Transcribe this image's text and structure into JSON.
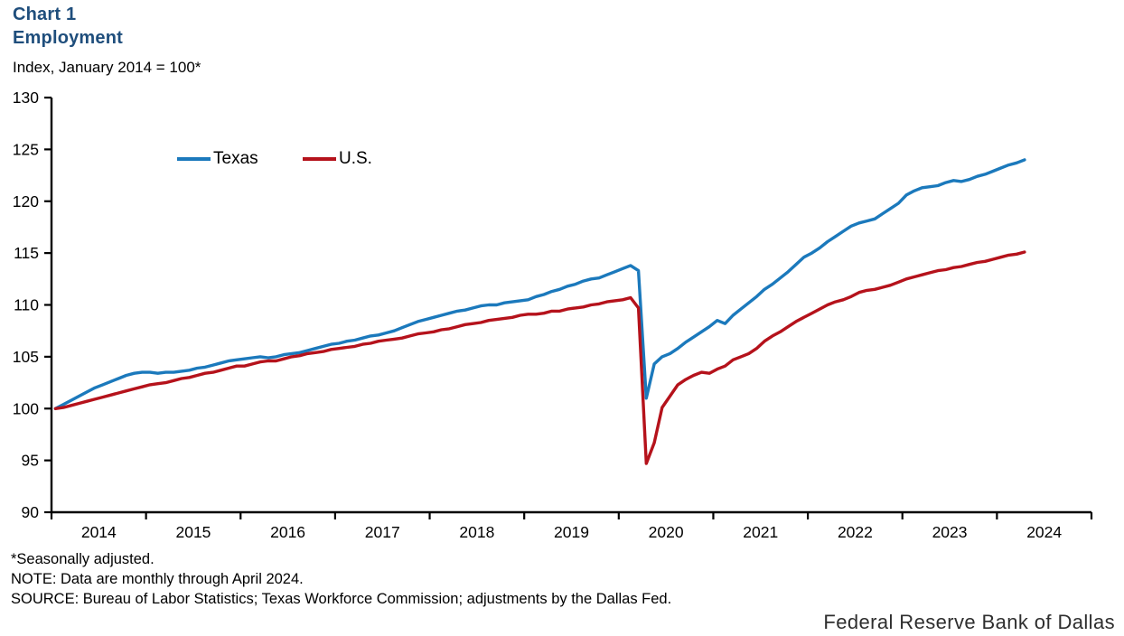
{
  "header": {
    "chart_label": "Chart 1",
    "title": "Employment",
    "subtitle": "Index, January 2014 = 100*"
  },
  "footer": {
    "line1": "*Seasonally adjusted.",
    "line2": "NOTE: Data are monthly through April 2024.",
    "line3": "SOURCE: Bureau of Labor Statistics; Texas Workforce Commission; adjustments by the Dallas Fed."
  },
  "branding": "Federal Reserve Bank of Dallas",
  "colors": {
    "title_navy": "#1f4e7c",
    "texas_blue": "#1b79bc",
    "us_red": "#b5121b",
    "axis_black": "#000000"
  },
  "chart_data": {
    "type": "line",
    "title": "Employment",
    "subtitle": "Index, January 2014 = 100*",
    "frequency": "monthly",
    "x_start": "2014-01",
    "x_end": "2024-04",
    "ylim": [
      90,
      130
    ],
    "yticks": [
      90,
      95,
      100,
      105,
      110,
      115,
      120,
      125,
      130
    ],
    "xticklabels": [
      "2014",
      "2015",
      "2016",
      "2017",
      "2018",
      "2019",
      "2020",
      "2021",
      "2022",
      "2023",
      "2024"
    ],
    "grid": false,
    "legend_position": "top-left-inside",
    "series": [
      {
        "name": "Texas",
        "color": "#1b79bc",
        "values": [
          100.0,
          100.4,
          100.8,
          101.2,
          101.6,
          102.0,
          102.3,
          102.6,
          102.9,
          103.2,
          103.4,
          103.5,
          103.5,
          103.4,
          103.5,
          103.5,
          103.6,
          103.7,
          103.9,
          104.0,
          104.2,
          104.4,
          104.6,
          104.7,
          104.8,
          104.9,
          105.0,
          104.9,
          105.0,
          105.2,
          105.3,
          105.4,
          105.6,
          105.8,
          106.0,
          106.2,
          106.3,
          106.5,
          106.6,
          106.8,
          107.0,
          107.1,
          107.3,
          107.5,
          107.8,
          108.1,
          108.4,
          108.6,
          108.8,
          109.0,
          109.2,
          109.4,
          109.5,
          109.7,
          109.9,
          110.0,
          110.0,
          110.2,
          110.3,
          110.4,
          110.5,
          110.8,
          111.0,
          111.3,
          111.5,
          111.8,
          112.0,
          112.3,
          112.5,
          112.6,
          112.9,
          113.2,
          113.5,
          113.8,
          113.3,
          101.0,
          104.3,
          105.0,
          105.3,
          105.8,
          106.4,
          106.9,
          107.4,
          107.9,
          108.5,
          108.2,
          109.0,
          109.6,
          110.2,
          110.8,
          111.5,
          112.0,
          112.6,
          113.2,
          113.9,
          114.6,
          115.0,
          115.5,
          116.1,
          116.6,
          117.1,
          117.6,
          117.9,
          118.1,
          118.3,
          118.8,
          119.3,
          119.8,
          120.6,
          121.0,
          121.3,
          121.4,
          121.5,
          121.8,
          122.0,
          121.9,
          122.1,
          122.4,
          122.6,
          122.9,
          123.2,
          123.5,
          123.7,
          124.0
        ]
      },
      {
        "name": "U.S.",
        "color": "#b5121b",
        "values": [
          100.0,
          100.1,
          100.3,
          100.5,
          100.7,
          100.9,
          101.1,
          101.3,
          101.5,
          101.7,
          101.9,
          102.1,
          102.3,
          102.4,
          102.5,
          102.7,
          102.9,
          103.0,
          103.2,
          103.4,
          103.5,
          103.7,
          103.9,
          104.1,
          104.1,
          104.3,
          104.5,
          104.6,
          104.6,
          104.8,
          105.0,
          105.1,
          105.3,
          105.4,
          105.5,
          105.7,
          105.8,
          105.9,
          106.0,
          106.2,
          106.3,
          106.5,
          106.6,
          106.7,
          106.8,
          107.0,
          107.2,
          107.3,
          107.4,
          107.6,
          107.7,
          107.9,
          108.1,
          108.2,
          108.3,
          108.5,
          108.6,
          108.7,
          108.8,
          109.0,
          109.1,
          109.1,
          109.2,
          109.4,
          109.4,
          109.6,
          109.7,
          109.8,
          110.0,
          110.1,
          110.3,
          110.4,
          110.5,
          110.7,
          109.7,
          94.7,
          96.7,
          100.1,
          101.2,
          102.3,
          102.8,
          103.2,
          103.5,
          103.4,
          103.8,
          104.1,
          104.7,
          105.0,
          105.3,
          105.8,
          106.5,
          107.0,
          107.4,
          107.9,
          108.4,
          108.8,
          109.2,
          109.6,
          110.0,
          110.3,
          110.5,
          110.8,
          111.2,
          111.4,
          111.5,
          111.7,
          111.9,
          112.2,
          112.5,
          112.7,
          112.9,
          113.1,
          113.3,
          113.4,
          113.6,
          113.7,
          113.9,
          114.1,
          114.2,
          114.4,
          114.6,
          114.8,
          114.9,
          115.1
        ]
      }
    ]
  }
}
